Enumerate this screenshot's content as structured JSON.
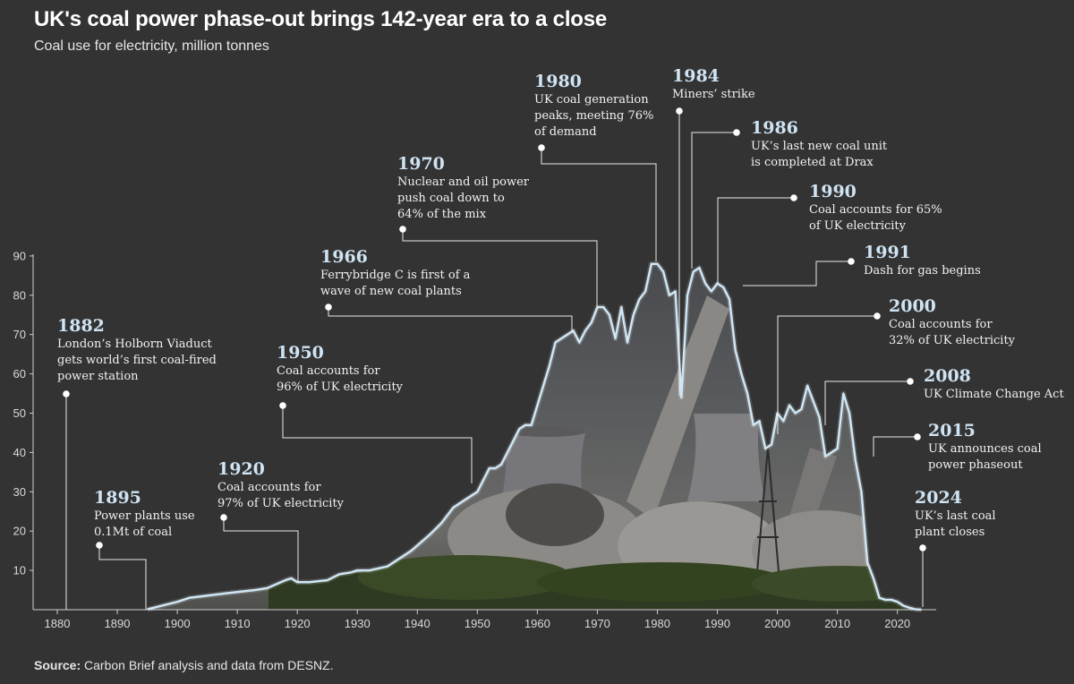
{
  "title": "UK's coal power phase-out brings 142-year era to a close",
  "subtitle": "Coal use for electricity, million tonnes",
  "source_label": "Source:",
  "source_text": " Carbon Brief analysis and data from DESNZ.",
  "colors": {
    "background": "#333333",
    "line": "#cfe6f5",
    "leader": "#e8e8e8"
  },
  "chart_data": {
    "type": "area",
    "xlabel": "",
    "ylabel": "Coal use for electricity, million tonnes",
    "xlim": [
      1877,
      2026
    ],
    "ylim": [
      0,
      90
    ],
    "x_ticks": [
      1880,
      1890,
      1900,
      1910,
      1920,
      1930,
      1940,
      1950,
      1960,
      1970,
      1980,
      1990,
      2000,
      2010,
      2020
    ],
    "y_ticks": [
      10,
      20,
      30,
      40,
      50,
      60,
      70,
      80,
      90
    ],
    "grid": false,
    "series": [
      {
        "name": "Coal use for electricity",
        "x": [
          1895,
          1900,
          1902,
          1905,
          1910,
          1913,
          1915,
          1918,
          1919,
          1920,
          1922,
          1925,
          1927,
          1929,
          1930,
          1932,
          1935,
          1937,
          1939,
          1942,
          1944,
          1946,
          1948,
          1950,
          1951,
          1952,
          1953,
          1954,
          1955,
          1956,
          1957,
          1958,
          1959,
          1960,
          1961,
          1962,
          1963,
          1964,
          1965,
          1966,
          1967,
          1968,
          1969,
          1970,
          1971,
          1972,
          1973,
          1974,
          1975,
          1976,
          1977,
          1978,
          1979,
          1980,
          1981,
          1982,
          1983,
          1984,
          1985,
          1986,
          1987,
          1988,
          1989,
          1990,
          1991,
          1992,
          1993,
          1994,
          1995,
          1996,
          1997,
          1998,
          1999,
          2000,
          2001,
          2002,
          2003,
          2004,
          2005,
          2006,
          2007,
          2008,
          2009,
          2010,
          2011,
          2012,
          2013,
          2014,
          2015,
          2016,
          2017,
          2018,
          2019,
          2020,
          2021,
          2022,
          2023,
          2024
        ],
        "values": [
          0.1,
          2,
          3,
          3.6,
          4.5,
          5,
          5.5,
          7.5,
          8,
          7,
          7,
          7.5,
          9,
          9.5,
          10,
          10,
          11,
          13,
          15,
          19,
          22,
          26,
          28,
          30,
          33,
          36,
          36,
          37,
          40,
          43,
          46,
          47,
          47,
          52,
          57,
          62,
          68,
          69,
          70,
          71,
          68,
          71,
          73,
          77,
          77,
          75,
          69,
          77,
          68,
          75,
          79,
          81,
          88,
          88,
          86,
          80,
          81,
          54,
          80,
          86,
          87,
          83,
          81,
          83,
          82,
          79,
          66,
          60,
          55,
          47,
          48,
          41,
          42,
          50,
          48,
          52,
          50,
          51,
          57,
          53,
          49,
          39,
          40,
          41,
          55,
          50,
          38,
          30,
          12,
          8,
          3,
          2.5,
          2.5,
          2,
          1,
          0.5,
          0.1,
          0
        ]
      }
    ],
    "annotations": [
      {
        "year": "1882",
        "lines": [
          "London’s Holborn Viaduct",
          "gets world’s first coal-fired",
          "power station"
        ]
      },
      {
        "year": "1895",
        "lines": [
          "Power plants use",
          "0.1Mt of coal"
        ]
      },
      {
        "year": "1920",
        "lines": [
          "Coal accounts for",
          "97% of UK electricity"
        ]
      },
      {
        "year": "1950",
        "lines": [
          "Coal accounts for",
          "96% of UK electricity"
        ]
      },
      {
        "year": "1966",
        "lines": [
          "Ferrybridge C is first of a",
          "wave of new coal plants"
        ]
      },
      {
        "year": "1970",
        "lines": [
          "Nuclear and oil power",
          "push coal down to",
          "64% of the mix"
        ]
      },
      {
        "year": "1980",
        "lines": [
          "UK coal generation",
          "peaks, meeting 76%",
          "of demand"
        ]
      },
      {
        "year": "1984",
        "lines": [
          "Miners’ strike"
        ]
      },
      {
        "year": "1986",
        "lines": [
          "UK’s last new coal unit",
          "is completed at Drax"
        ]
      },
      {
        "year": "1990",
        "lines": [
          "Coal accounts for 65%",
          "of UK electricity"
        ]
      },
      {
        "year": "1991",
        "lines": [
          "Dash for gas begins"
        ]
      },
      {
        "year": "2000",
        "lines": [
          "Coal accounts for",
          "32% of UK electricity"
        ]
      },
      {
        "year": "2008",
        "lines": [
          "UK Climate Change Act"
        ]
      },
      {
        "year": "2015",
        "lines": [
          "UK announces coal",
          "power phaseout"
        ]
      },
      {
        "year": "2024",
        "lines": [
          "UK’s last coal",
          "plant closes"
        ]
      }
    ]
  }
}
